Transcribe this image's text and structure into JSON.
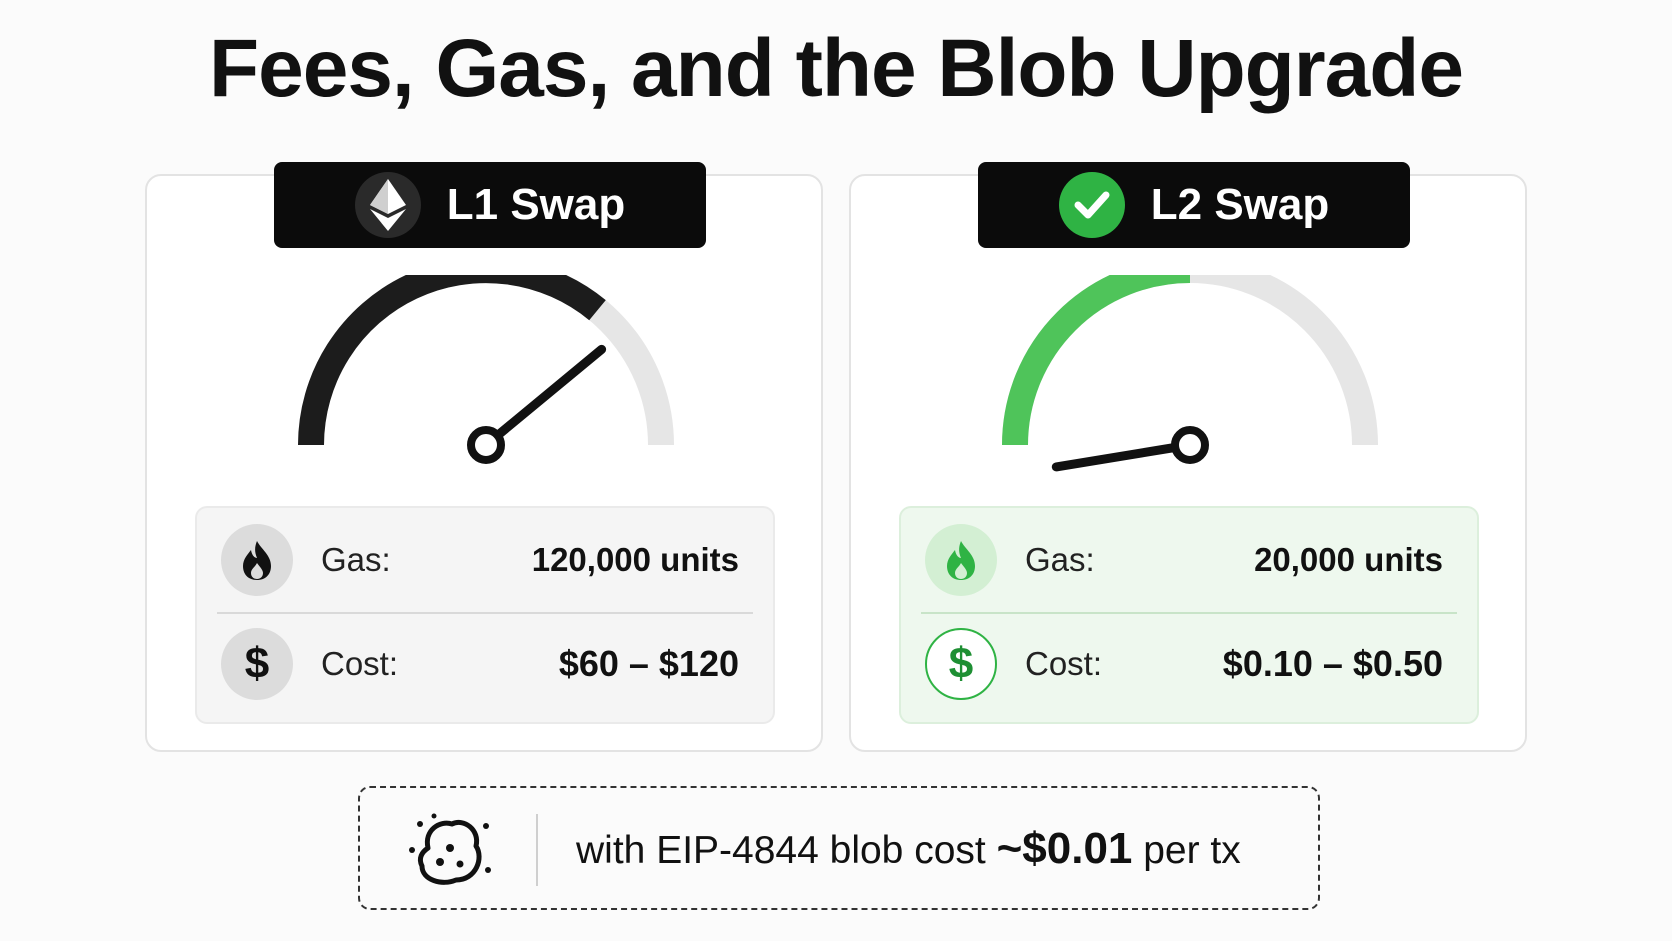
{
  "title": "Fees, Gas, and the Blob Upgrade",
  "cards": [
    {
      "label": "L1 Swap",
      "badge_icon": "ethereum-icon",
      "gauge_level": 0.72,
      "gauge_color": "#1c1c1c",
      "gas_label": "Gas:",
      "gas_value": "120,000 units",
      "cost_label": "Cost:",
      "cost_value": "$60 – $120",
      "cost_symbol": "$"
    },
    {
      "label": "L2 Swap",
      "badge_icon": "checkmark-icon",
      "gauge_level": 0.5,
      "gauge_color": "#4fc45a",
      "gas_label": "Gas:",
      "gas_value": "20,000 units",
      "cost_label": "Cost:",
      "cost_value": "$0.10 – $0.50",
      "cost_symbol": "$"
    }
  ],
  "footer": {
    "prefix": "with EIP-4844 blob cost ",
    "highlight": "~$0.01",
    "suffix": " per tx",
    "icon": "blob-icon"
  },
  "colors": {
    "accent_green": "#2fb344",
    "dark": "#0b0b0b",
    "track": "#e6e6e6"
  }
}
